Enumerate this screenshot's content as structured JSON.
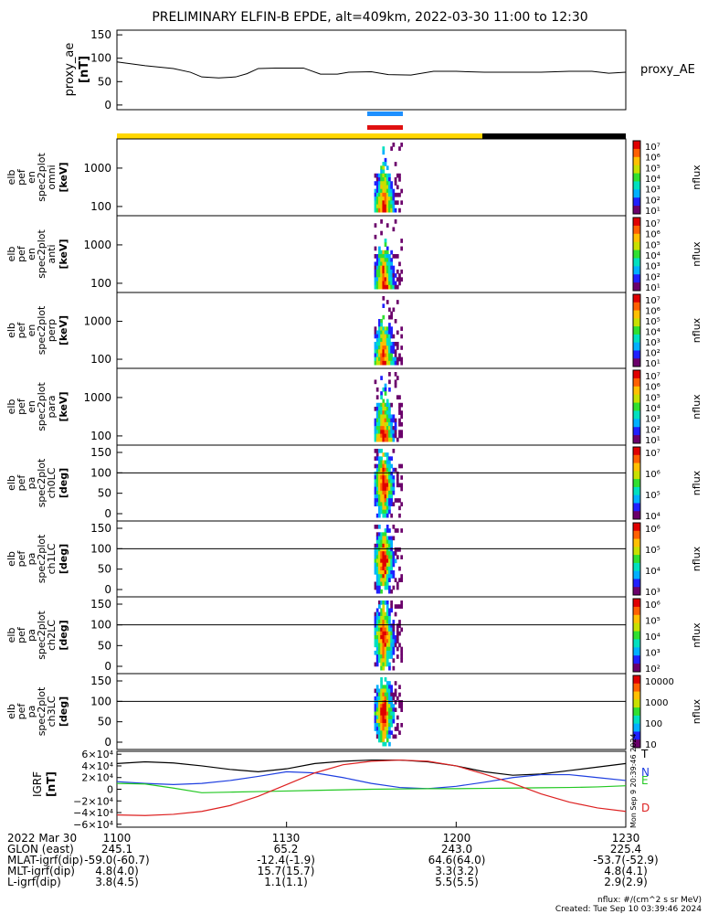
{
  "title": "PRELIMINARY ELFIN-B EPDE, alt=409km, 2022-03-30 11:00 to 12:30",
  "colors": {
    "status_yellow": "#ffd700",
    "status_black": "#000000",
    "science_blue": "#1e90ff",
    "science_red": "#e01010",
    "bx_trace": "#000000",
    "by_trace": "#1f3fe0",
    "bz_trace": "#22c822",
    "bd_trace": "#dd2020"
  },
  "chart_data": [
    {
      "type": "line",
      "id": "proxy_ae",
      "ylabel": "proxy_ae",
      "yunits": "[nT]",
      "ylim": [
        -10,
        160
      ],
      "yticks": [
        "150",
        "100",
        "50",
        "0"
      ],
      "legend": "proxy_AE",
      "x_minutes": [
        0,
        5,
        10,
        13,
        15,
        18,
        21,
        23,
        25,
        28,
        33,
        36,
        39,
        41,
        45,
        48,
        52,
        56,
        60,
        65,
        70,
        75,
        80,
        84,
        87,
        90
      ],
      "values": [
        92,
        84,
        78,
        70,
        60,
        58,
        60,
        67,
        78,
        79,
        79,
        66,
        66,
        70,
        71,
        65,
        64,
        72,
        72,
        70,
        70,
        70,
        72,
        72,
        68,
        70
      ]
    },
    {
      "type": "heatmap",
      "id": "omni",
      "ylabel_lines": [
        "elb",
        "pef",
        "en",
        "spec2plot",
        "omni"
      ],
      "yunits": "[keV]",
      "yscale": "log",
      "yticks": [
        "1000",
        "100"
      ],
      "colorbar": {
        "label": "nflux",
        "ticks": [
          "10⁷",
          "10⁶",
          "10⁵",
          "10⁴",
          "10³",
          "10²",
          "10¹"
        ]
      }
    },
    {
      "type": "heatmap",
      "id": "anti",
      "ylabel_lines": [
        "elb",
        "pef",
        "en",
        "spec2plot",
        "anti"
      ],
      "yunits": "[keV]",
      "yscale": "log",
      "yticks": [
        "1000",
        "100"
      ],
      "colorbar": {
        "label": "nflux",
        "ticks": [
          "10⁷",
          "10⁶",
          "10⁵",
          "10⁴",
          "10³",
          "10²",
          "10¹"
        ]
      }
    },
    {
      "type": "heatmap",
      "id": "perp",
      "ylabel_lines": [
        "elb",
        "pef",
        "en",
        "spec2plot",
        "perp"
      ],
      "yunits": "[keV]",
      "yscale": "log",
      "yticks": [
        "1000",
        "100"
      ],
      "colorbar": {
        "label": "nflux",
        "ticks": [
          "10⁷",
          "10⁶",
          "10⁵",
          "10⁴",
          "10³",
          "10²",
          "10¹"
        ]
      }
    },
    {
      "type": "heatmap",
      "id": "para",
      "ylabel_lines": [
        "elb",
        "pef",
        "en",
        "spec2plot",
        "para"
      ],
      "yunits": "[keV]",
      "yscale": "log",
      "yticks": [
        "1000",
        "100"
      ],
      "colorbar": {
        "label": "nflux",
        "ticks": [
          "10⁷",
          "10⁶",
          "10⁵",
          "10⁴",
          "10³",
          "10²",
          "10¹"
        ]
      }
    },
    {
      "type": "heatmap",
      "id": "ch0LC",
      "ylabel_lines": [
        "elb",
        "pef",
        "pa",
        "spec2plot",
        "ch0LC"
      ],
      "yunits": "[deg]",
      "yticks": [
        "150",
        "100",
        "50",
        "0"
      ],
      "colorbar": {
        "label": "nflux",
        "ticks": [
          "10⁷",
          "10⁶",
          "10⁵",
          "10⁴"
        ]
      }
    },
    {
      "type": "heatmap",
      "id": "ch1LC",
      "ylabel_lines": [
        "elb",
        "pef",
        "pa",
        "spec2plot",
        "ch1LC"
      ],
      "yunits": "[deg]",
      "yticks": [
        "150",
        "100",
        "50",
        "0"
      ],
      "colorbar": {
        "label": "nflux",
        "ticks": [
          "10⁶",
          "10⁵",
          "10⁴",
          "10³"
        ]
      }
    },
    {
      "type": "heatmap",
      "id": "ch2LC",
      "ylabel_lines": [
        "elb",
        "pef",
        "pa",
        "spec2plot",
        "ch2LC"
      ],
      "yunits": "[deg]",
      "yticks": [
        "150",
        "100",
        "50",
        "0"
      ],
      "colorbar": {
        "label": "nflux",
        "ticks": [
          "10⁶",
          "10⁵",
          "10⁴",
          "10³",
          "10²"
        ]
      }
    },
    {
      "type": "heatmap",
      "id": "ch3LC",
      "ylabel_lines": [
        "elb",
        "pef",
        "pa",
        "spec2plot",
        "ch3LC"
      ],
      "yunits": "[deg]",
      "yticks": [
        "150",
        "100",
        "50",
        "0"
      ],
      "colorbar": {
        "label": "nflux",
        "ticks": [
          "10000",
          "1000",
          "100",
          "10"
        ]
      }
    },
    {
      "type": "line",
      "id": "igrf",
      "ylabel": "IGRF",
      "yunits": "[nT]",
      "ylim": [
        -65000,
        65000
      ],
      "yticks": [
        "6×10⁴",
        "4×10⁴",
        "2×10⁴",
        "0",
        "−2×10⁴",
        "−4×10⁴",
        "−6×10⁴"
      ],
      "side_note": "Mon Sep 9 20:39:46 2024",
      "x_minutes": [
        0,
        5,
        10,
        15,
        20,
        25,
        30,
        35,
        40,
        45,
        50,
        55,
        60,
        65,
        70,
        75,
        80,
        85,
        90
      ],
      "series": [
        {
          "name": "T",
          "values": [
            44000,
            47000,
            45000,
            40000,
            34000,
            30000,
            35000,
            44000,
            48000,
            50000,
            50000,
            47000,
            40000,
            30000,
            24000,
            26000,
            32000,
            38000,
            44000
          ]
        },
        {
          "name": "N",
          "values": [
            13000,
            10000,
            8000,
            10000,
            15000,
            22000,
            30000,
            28000,
            20000,
            10000,
            3000,
            1000,
            5000,
            12000,
            20000,
            25000,
            25000,
            20000,
            15000
          ]
        },
        {
          "name": "E",
          "values": [
            10000,
            9000,
            2000,
            -6000,
            -5000,
            -4000,
            -3000,
            -2000,
            -1000,
            0,
            500,
            1000,
            1000,
            1500,
            2000,
            2500,
            3000,
            4000,
            6000
          ]
        },
        {
          "name": "D",
          "values": [
            -44000,
            -45000,
            -43000,
            -38000,
            -28000,
            -12000,
            8000,
            28000,
            42000,
            48000,
            50000,
            48000,
            40000,
            26000,
            10000,
            -8000,
            -22000,
            -32000,
            -38000
          ]
        }
      ]
    }
  ],
  "x_axis": {
    "ticks": [
      "1100",
      "1130",
      "1200",
      "1230"
    ],
    "rows": [
      {
        "label": "2022 Mar 30",
        "values": [
          "1100",
          "1130",
          "1200",
          "1230"
        ]
      },
      {
        "label": "GLON (east)",
        "values": [
          "245.1",
          "65.2",
          "243.0",
          "225.4"
        ]
      },
      {
        "label": "MLAT-igrf(dip)",
        "values": [
          "-59.0(-60.7)",
          "-12.4(-1.9)",
          "64.6(64.0)",
          "-53.7(-52.9)"
        ]
      },
      {
        "label": "MLT-igrf(dip)",
        "values": [
          "4.8(4.0)",
          "15.7(15.7)",
          "3.3(3.2)",
          "4.8(4.1)"
        ]
      },
      {
        "label": "L-igrf(dip)",
        "values": [
          "3.8(4.5)",
          "1.1(1.1)",
          "5.5(5.5)",
          "2.9(2.9)"
        ]
      }
    ]
  },
  "footer": {
    "units": "nflux: #/(cm^2 s sr MeV)",
    "created": "Created: Tue Sep 10 03:39:46 2024"
  }
}
